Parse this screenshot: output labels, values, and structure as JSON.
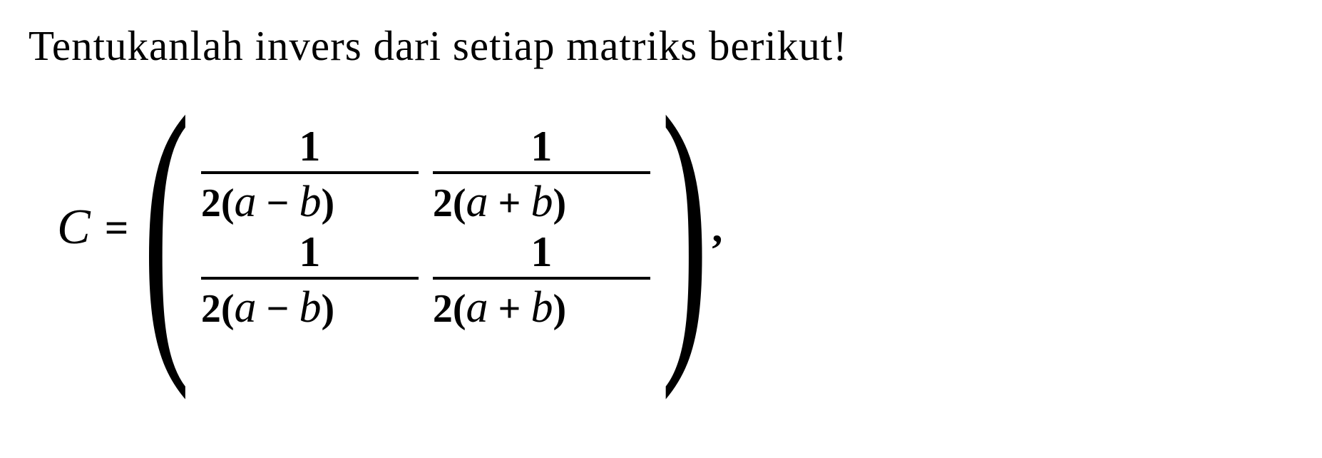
{
  "question": "Tentukanlah invers dari setiap matriks berikut!",
  "equation": {
    "lhs_variable": "C",
    "equals": "=",
    "matrix": {
      "rows": [
        [
          {
            "numerator": "1",
            "denom_coef": "2(",
            "denom_a": "a",
            "denom_op": " − ",
            "denom_b": "b",
            "denom_close": ")"
          },
          {
            "numerator": "1",
            "denom_coef": "2(",
            "denom_a": "a",
            "denom_op": " + ",
            "denom_b": "b",
            "denom_close": ")"
          }
        ],
        [
          {
            "numerator": "1",
            "denom_coef": "2(",
            "denom_a": "a",
            "denom_op": " − ",
            "denom_b": "b",
            "denom_close": ")"
          },
          {
            "numerator": "1",
            "denom_coef": "2(",
            "denom_a": "a",
            "denom_op": " + ",
            "denom_b": "b",
            "denom_close": ")"
          }
        ]
      ]
    },
    "trailing": ","
  },
  "style": {
    "text_color": "#000000",
    "background_color": "#ffffff",
    "question_fontsize": 59,
    "math_fontsize": 59,
    "fraction_line_thickness": 4
  }
}
